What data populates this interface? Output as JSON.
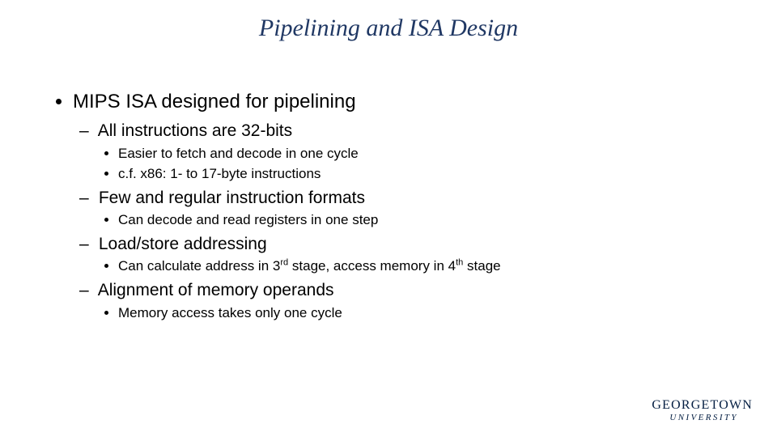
{
  "title": "Pipelining and ISA Design",
  "main": {
    "text": "MIPS ISA designed for pipelining",
    "subs": [
      {
        "text": "All instructions are 32-bits",
        "bullets": [
          "Easier to fetch and decode in one cycle",
          "c.f. x86: 1- to 17-byte instructions"
        ]
      },
      {
        "text": "Few and regular instruction formats",
        "bullets": [
          "Can decode and read registers in one step"
        ]
      },
      {
        "text": "Load/store addressing",
        "bullets_html": [
          "Can calculate address in 3<sup>rd</sup> stage, access memory in 4<sup>th</sup> stage"
        ]
      },
      {
        "text": "Alignment of memory operands",
        "bullets": [
          "Memory access takes only one cycle"
        ]
      }
    ]
  },
  "logo": {
    "line1": "GEORGETOWN",
    "line2": "UNIVERSITY"
  },
  "colors": {
    "title": "#203864",
    "logo": "#041E42",
    "text": "#000000",
    "background": "#ffffff"
  }
}
